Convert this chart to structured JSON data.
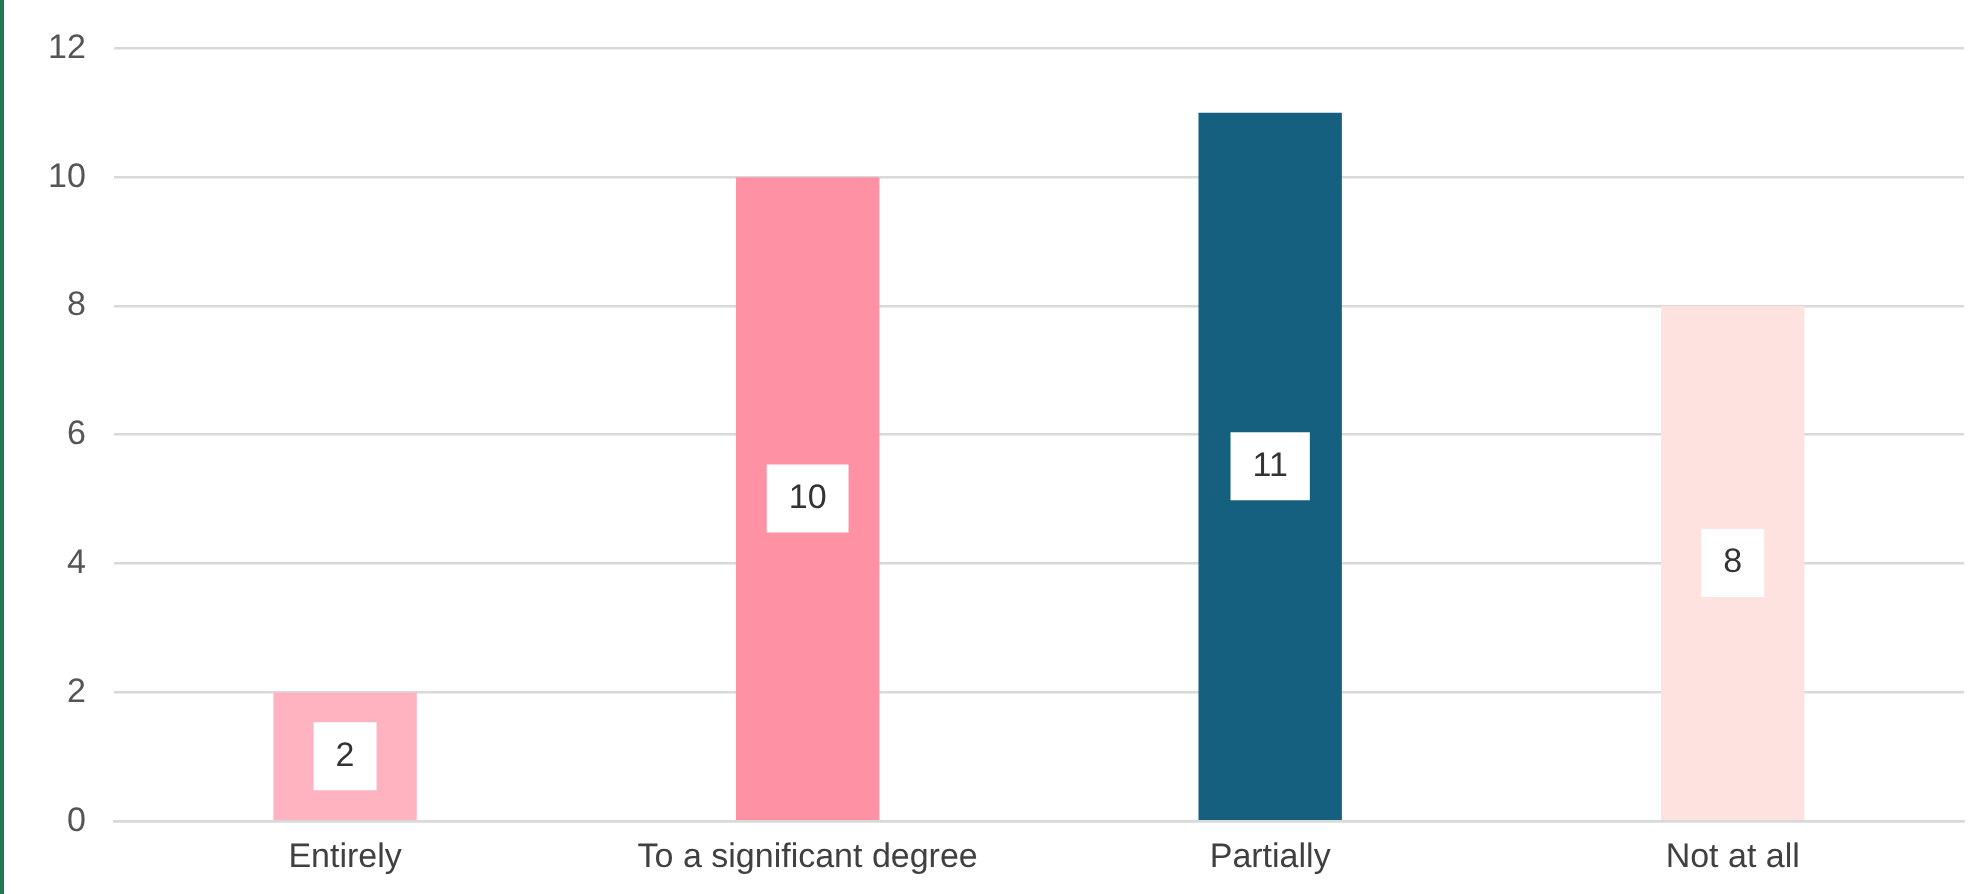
{
  "chart_data": {
    "type": "bar",
    "categories": [
      "Entirely",
      "To a significant degree",
      "Partially",
      "Not at all"
    ],
    "values": [
      2,
      10,
      11,
      8
    ],
    "colors": [
      "#ffb3c1",
      "#ff91a4",
      "#16607f",
      "#fde2df"
    ],
    "ylim": [
      0,
      12
    ],
    "yticks": [
      0,
      2,
      4,
      6,
      8,
      10,
      12
    ],
    "grid": "y",
    "data_labels": true
  }
}
